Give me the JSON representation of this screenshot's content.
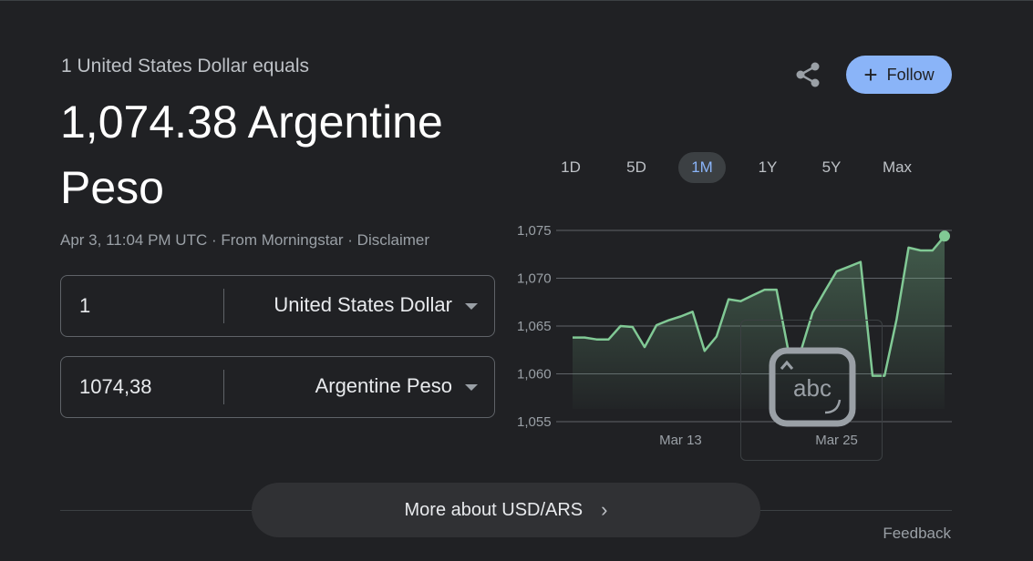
{
  "header": {
    "subtitle": "1 United States Dollar equals",
    "rate_line": "1,074.38 Argentine Peso",
    "timestamp": "Apr 3, 11:04 PM UTC",
    "source": "From Morningstar",
    "disclaimer": "Disclaimer",
    "separator": "·"
  },
  "actions": {
    "share_icon": "share-icon",
    "follow_label": "Follow",
    "follow_symbol": "+"
  },
  "converter": {
    "from": {
      "amount": "1",
      "currency": "United States Dollar"
    },
    "to": {
      "amount": "1074,38",
      "currency": "Argentine Peso"
    }
  },
  "ranges": {
    "items": [
      "1D",
      "5D",
      "1M",
      "1Y",
      "5Y",
      "Max"
    ],
    "selected": "1M"
  },
  "chart_data": {
    "type": "area",
    "y_ticks": [
      "1,075",
      "1,070",
      "1,065",
      "1,060",
      "1,055"
    ],
    "y_tick_values": [
      1075,
      1070,
      1065,
      1060,
      1055
    ],
    "ylim": [
      1055,
      1075
    ],
    "x_tick_labels": [
      "Mar 13",
      "Mar 25"
    ],
    "x_tick_index": [
      9,
      22
    ],
    "grid": true,
    "line_color": "#81c995",
    "values": [
      1063.8,
      1063.8,
      1063.6,
      1063.6,
      1065.0,
      1064.9,
      1062.8,
      1065.1,
      1065.6,
      1066.0,
      1066.5,
      1062.4,
      1063.9,
      1067.8,
      1067.6,
      1068.2,
      1068.8,
      1068.8,
      1062.3,
      1062.3,
      1066.4,
      1068.6,
      1070.7,
      1071.2,
      1071.7,
      1059.8,
      1059.8,
      1065.7,
      1073.2,
      1072.9,
      1072.9,
      1074.4
    ]
  },
  "overlay": {
    "icon_text": "abc",
    "icon_name": "keyboard-abc-icon"
  },
  "footer": {
    "more_label": "More about USD/ARS",
    "more_chevron": "›",
    "feedback": "Feedback"
  }
}
